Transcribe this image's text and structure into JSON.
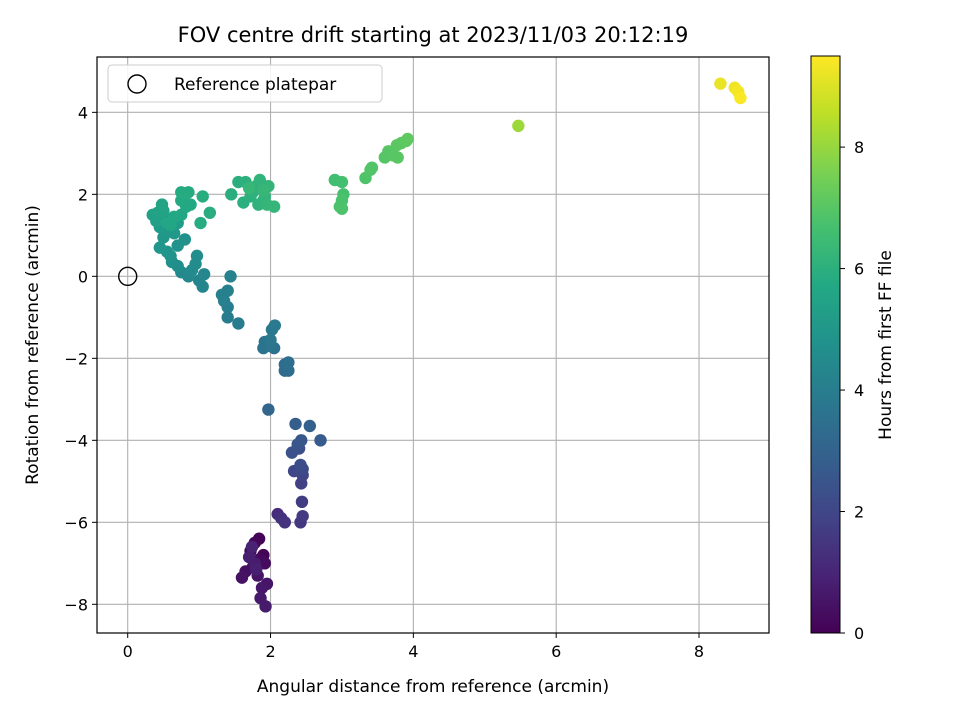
{
  "chart_data": {
    "type": "scatter",
    "title": "FOV centre drift starting at 2023/11/03 20:12:19",
    "xlabel": "Angular distance from reference (arcmin)",
    "ylabel": "Rotation from reference (arcmin)",
    "xlim": [
      -0.43,
      8.98
    ],
    "ylim": [
      -8.7,
      5.35
    ],
    "xticks": [
      0,
      2,
      4,
      6,
      8
    ],
    "yticks": [
      -8,
      -6,
      -4,
      -2,
      0,
      2,
      4
    ],
    "grid": true,
    "legend": {
      "placement": "top-left",
      "entries": [
        "Reference platepar"
      ]
    },
    "reference_point": {
      "x": 0,
      "y": 0,
      "label": "Reference platepar"
    },
    "colorbar": {
      "label": "Hours from first FF file",
      "colormap": "viridis",
      "range": [
        0,
        9.5
      ],
      "ticks": [
        0,
        2,
        4,
        6,
        8
      ]
    },
    "points": [
      [
        1.84,
        -6.4,
        0.05
      ],
      [
        1.9,
        -6.8,
        0.1
      ],
      [
        1.78,
        -6.5,
        0.15
      ],
      [
        1.72,
        -6.7,
        0.2
      ],
      [
        1.85,
        -6.9,
        0.25
      ],
      [
        1.92,
        -7.0,
        0.3
      ],
      [
        1.75,
        -7.1,
        0.35
      ],
      [
        1.65,
        -7.2,
        0.4
      ],
      [
        1.6,
        -7.35,
        0.45
      ],
      [
        1.82,
        -7.3,
        0.5
      ],
      [
        1.95,
        -7.5,
        0.55
      ],
      [
        1.88,
        -7.6,
        0.6
      ],
      [
        1.86,
        -7.85,
        0.65
      ],
      [
        1.93,
        -8.05,
        0.7
      ],
      [
        1.78,
        -7.0,
        0.75
      ],
      [
        1.7,
        -6.85,
        0.8
      ],
      [
        1.8,
        -7.15,
        0.85
      ],
      [
        1.74,
        -6.6,
        0.9
      ],
      [
        2.1,
        -5.8,
        1.2
      ],
      [
        2.15,
        -5.9,
        1.3
      ],
      [
        2.2,
        -6.0,
        1.4
      ],
      [
        2.42,
        -6.0,
        1.5
      ],
      [
        2.45,
        -5.85,
        1.6
      ],
      [
        2.44,
        -5.5,
        1.7
      ],
      [
        2.43,
        -5.05,
        1.8
      ],
      [
        2.45,
        -4.85,
        1.9
      ],
      [
        2.33,
        -4.75,
        2.0
      ],
      [
        2.45,
        -4.7,
        2.1
      ],
      [
        2.42,
        -4.6,
        2.2
      ],
      [
        2.4,
        -4.2,
        2.3
      ],
      [
        2.3,
        -4.3,
        2.4
      ],
      [
        2.38,
        -4.1,
        2.5
      ],
      [
        2.43,
        -4.0,
        2.6
      ],
      [
        2.7,
        -4.0,
        2.7
      ],
      [
        2.35,
        -3.6,
        2.8
      ],
      [
        2.55,
        -3.65,
        2.9
      ],
      [
        1.97,
        -3.25,
        3.1
      ],
      [
        2.2,
        -2.3,
        3.3
      ],
      [
        2.25,
        -2.3,
        3.35
      ],
      [
        2.2,
        -2.15,
        3.4
      ],
      [
        2.25,
        -2.1,
        3.45
      ],
      [
        2.05,
        -1.75,
        3.55
      ],
      [
        1.92,
        -1.6,
        3.6
      ],
      [
        1.9,
        -1.75,
        3.65
      ],
      [
        2.0,
        -1.7,
        3.7
      ],
      [
        2.0,
        -1.55,
        3.75
      ],
      [
        2.02,
        -1.3,
        3.8
      ],
      [
        2.06,
        -1.2,
        3.85
      ],
      [
        1.55,
        -1.15,
        3.9
      ],
      [
        1.4,
        -1.0,
        3.95
      ],
      [
        1.4,
        -0.75,
        4.0
      ],
      [
        1.35,
        -0.6,
        4.05
      ],
      [
        1.32,
        -0.45,
        4.1
      ],
      [
        1.4,
        -0.35,
        4.15
      ],
      [
        1.44,
        0.0,
        4.2
      ],
      [
        1.05,
        -0.25,
        4.25
      ],
      [
        1.0,
        -0.1,
        4.3
      ],
      [
        1.07,
        0.05,
        4.35
      ],
      [
        0.85,
        0.0,
        4.4
      ],
      [
        0.75,
        0.1,
        4.45
      ],
      [
        0.9,
        0.15,
        4.5
      ],
      [
        0.95,
        0.3,
        4.55
      ],
      [
        0.97,
        0.5,
        4.6
      ],
      [
        0.7,
        0.25,
        4.65
      ],
      [
        0.62,
        0.35,
        4.7
      ],
      [
        0.8,
        0.9,
        4.75
      ],
      [
        0.7,
        0.75,
        4.8
      ],
      [
        0.6,
        0.5,
        4.85
      ],
      [
        0.55,
        0.6,
        4.9
      ],
      [
        0.45,
        0.7,
        4.95
      ],
      [
        0.5,
        0.95,
        5.0
      ],
      [
        0.65,
        1.05,
        5.05
      ],
      [
        0.55,
        1.15,
        5.1
      ],
      [
        0.45,
        1.2,
        5.15
      ],
      [
        0.7,
        1.3,
        5.2
      ],
      [
        0.6,
        1.4,
        5.25
      ],
      [
        0.48,
        1.45,
        5.3
      ],
      [
        0.4,
        1.35,
        5.35
      ],
      [
        0.35,
        1.5,
        5.4
      ],
      [
        0.42,
        1.55,
        5.45
      ],
      [
        0.5,
        1.6,
        5.5
      ],
      [
        0.48,
        1.75,
        5.55
      ],
      [
        0.55,
        1.3,
        5.6
      ],
      [
        0.6,
        1.25,
        5.62
      ],
      [
        0.75,
        1.5,
        5.65
      ],
      [
        0.65,
        1.45,
        5.68
      ],
      [
        0.82,
        1.7,
        5.7
      ],
      [
        0.88,
        1.75,
        5.72
      ],
      [
        0.75,
        1.85,
        5.75
      ],
      [
        0.8,
        2.0,
        5.78
      ],
      [
        0.85,
        2.05,
        5.8
      ],
      [
        0.75,
        2.05,
        5.82
      ],
      [
        1.02,
        1.3,
        5.85
      ],
      [
        1.15,
        1.55,
        5.88
      ],
      [
        1.05,
        1.95,
        5.9
      ],
      [
        1.45,
        2.0,
        5.92
      ],
      [
        1.55,
        2.3,
        5.95
      ],
      [
        1.62,
        1.8,
        5.98
      ],
      [
        1.72,
        1.95,
        6.0
      ],
      [
        1.65,
        2.3,
        6.02
      ],
      [
        1.75,
        2.05,
        6.05
      ],
      [
        1.8,
        2.2,
        6.08
      ],
      [
        1.83,
        1.75,
        6.1
      ],
      [
        1.9,
        1.85,
        6.12
      ],
      [
        1.85,
        2.35,
        6.15
      ],
      [
        1.92,
        1.95,
        6.18
      ],
      [
        1.97,
        2.2,
        6.2
      ],
      [
        2.05,
        1.7,
        6.22
      ],
      [
        1.95,
        1.75,
        6.25
      ],
      [
        1.9,
        2.1,
        6.28
      ],
      [
        1.7,
        2.15,
        6.3
      ],
      [
        2.9,
        2.35,
        6.6
      ],
      [
        3.0,
        2.3,
        6.65
      ],
      [
        3.02,
        2.0,
        6.7
      ],
      [
        3.0,
        1.85,
        6.75
      ],
      [
        2.97,
        1.7,
        6.78
      ],
      [
        3.0,
        1.65,
        6.8
      ],
      [
        3.33,
        2.4,
        6.85
      ],
      [
        3.4,
        2.6,
        6.9
      ],
      [
        3.42,
        2.65,
        6.92
      ],
      [
        3.6,
        2.9,
        6.95
      ],
      [
        3.65,
        3.05,
        6.98
      ],
      [
        3.72,
        2.95,
        7.0
      ],
      [
        3.78,
        2.9,
        7.02
      ],
      [
        3.77,
        3.2,
        7.05
      ],
      [
        3.83,
        3.25,
        7.08
      ],
      [
        3.9,
        3.3,
        7.1
      ],
      [
        3.92,
        3.35,
        7.12
      ],
      [
        5.47,
        3.67,
        8.1
      ],
      [
        8.3,
        4.7,
        9.2
      ],
      [
        8.5,
        4.6,
        9.3
      ],
      [
        8.55,
        4.5,
        9.35
      ],
      [
        8.58,
        4.35,
        9.45
      ]
    ]
  }
}
